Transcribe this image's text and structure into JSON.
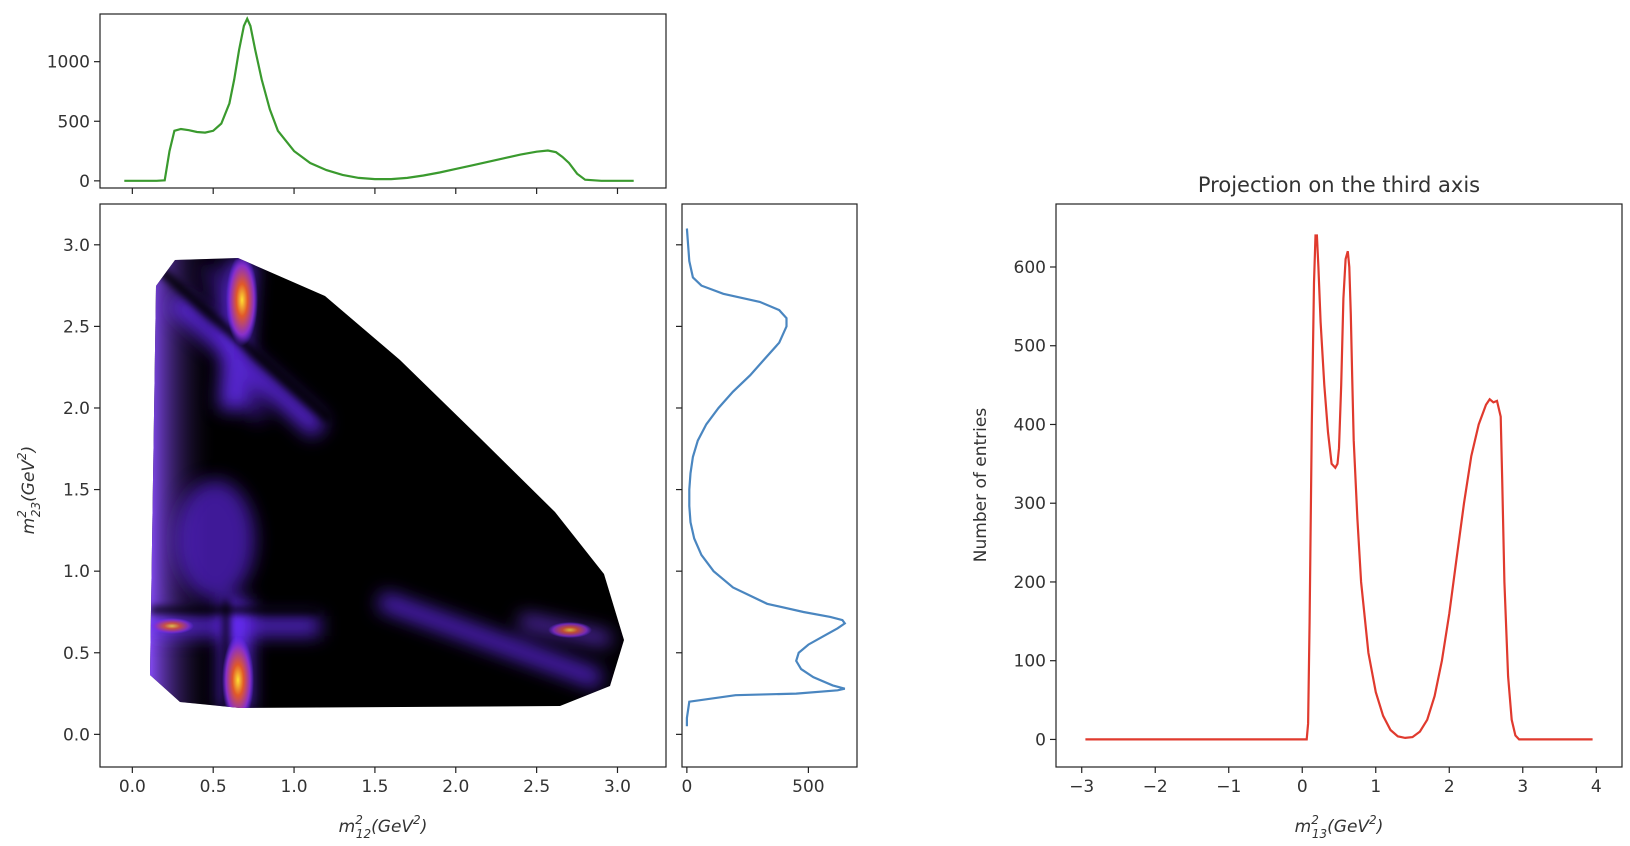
{
  "chart_data": [
    {
      "id": "top",
      "type": "line",
      "title": "",
      "xlabel": "",
      "ylabel": "",
      "xlim": [
        -0.2,
        3.3
      ],
      "ylim": [
        -60,
        1400
      ],
      "x_ticks": [
        0.0,
        0.5,
        1.0,
        1.5,
        2.0,
        2.5,
        3.0
      ],
      "y_ticks": [
        0,
        500,
        1000
      ],
      "y_tick_labels": [
        "0",
        "500",
        "1000"
      ],
      "color": "#3a9a2e",
      "series": [
        {
          "x": [
            -0.05,
            0.1,
            0.15,
            0.2,
            0.23,
            0.26,
            0.3,
            0.35,
            0.4,
            0.45,
            0.5,
            0.55,
            0.6,
            0.63,
            0.66,
            0.69,
            0.71,
            0.73,
            0.76,
            0.8,
            0.85,
            0.9,
            1.0,
            1.1,
            1.2,
            1.3,
            1.4,
            1.5,
            1.6,
            1.7,
            1.8,
            1.9,
            2.0,
            2.1,
            2.2,
            2.3,
            2.4,
            2.5,
            2.57,
            2.62,
            2.66,
            2.7,
            2.75,
            2.8,
            2.9,
            3.0,
            3.1
          ],
          "y": [
            0,
            0,
            0,
            5,
            250,
            420,
            435,
            425,
            410,
            405,
            420,
            480,
            650,
            850,
            1100,
            1300,
            1360,
            1300,
            1100,
            850,
            600,
            420,
            250,
            150,
            90,
            50,
            25,
            15,
            15,
            25,
            45,
            70,
            100,
            130,
            160,
            190,
            220,
            245,
            255,
            240,
            200,
            150,
            60,
            10,
            0,
            0,
            0
          ]
        }
      ]
    },
    {
      "id": "side",
      "type": "line",
      "title": "",
      "xlabel": "",
      "ylabel": "",
      "xlim": [
        -20,
        700
      ],
      "ylim": [
        -0.2,
        3.25
      ],
      "x_ticks": [
        0,
        500
      ],
      "x_tick_labels": [
        "0",
        "500"
      ],
      "y_ticks": [
        0.0,
        0.5,
        1.0,
        1.5,
        2.0,
        2.5,
        3.0
      ],
      "color": "#4a86c0",
      "series": [
        {
          "y": [
            0.05,
            0.1,
            0.2,
            0.24,
            0.25,
            0.27,
            0.28,
            0.3,
            0.35,
            0.4,
            0.45,
            0.5,
            0.55,
            0.6,
            0.65,
            0.68,
            0.7,
            0.72,
            0.75,
            0.8,
            0.9,
            1.0,
            1.1,
            1.2,
            1.3,
            1.4,
            1.5,
            1.6,
            1.7,
            1.8,
            1.9,
            2.0,
            2.1,
            2.2,
            2.3,
            2.4,
            2.5,
            2.55,
            2.6,
            2.65,
            2.7,
            2.75,
            2.8,
            2.9,
            3.0,
            3.1
          ],
          "x": [
            0,
            0,
            10,
            200,
            450,
            620,
            650,
            600,
            520,
            470,
            450,
            460,
            500,
            560,
            620,
            650,
            640,
            590,
            480,
            330,
            190,
            110,
            60,
            30,
            15,
            10,
            10,
            15,
            25,
            45,
            80,
            130,
            190,
            260,
            320,
            380,
            410,
            410,
            380,
            300,
            150,
            60,
            25,
            10,
            5,
            0
          ]
        }
      ]
    },
    {
      "id": "dalitz",
      "type": "heatmap",
      "title": "",
      "xlabel": "m$^2_{12}(GeV^2)$",
      "ylabel": "m$^2_{23}(GeV^2)$",
      "xlim": [
        -0.2,
        3.3
      ],
      "ylim": [
        -0.2,
        3.25
      ],
      "x_ticks": [
        0.0,
        0.5,
        1.0,
        1.5,
        2.0,
        2.5,
        3.0
      ],
      "y_ticks": [
        0.0,
        0.5,
        1.0,
        1.5,
        2.0,
        2.5,
        3.0
      ],
      "colormap": "gnuplot",
      "colors": {
        "low": "#000000",
        "mid": "#7a3cff",
        "high": "#ffe033"
      }
    },
    {
      "id": "third",
      "type": "line",
      "title": "Projection on the third axis",
      "xlabel": "m$^2_{13}(GeV^2)$",
      "ylabel": "Number of entries",
      "xlim": [
        -3.35,
        4.35
      ],
      "ylim": [
        -35,
        680
      ],
      "x_ticks": [
        -3,
        -2,
        -1,
        0,
        1,
        2,
        3,
        4
      ],
      "x_tick_labels": [
        "−3",
        "−2",
        "−1",
        "0",
        "1",
        "2",
        "3",
        "4"
      ],
      "y_ticks": [
        0,
        100,
        200,
        300,
        400,
        500,
        600
      ],
      "color": "#e03a2e",
      "series": [
        {
          "x": [
            -2.95,
            0.0,
            0.06,
            0.08,
            0.1,
            0.13,
            0.16,
            0.18,
            0.2,
            0.22,
            0.25,
            0.3,
            0.35,
            0.4,
            0.45,
            0.48,
            0.5,
            0.53,
            0.56,
            0.59,
            0.62,
            0.64,
            0.66,
            0.68,
            0.7,
            0.75,
            0.8,
            0.9,
            1.0,
            1.1,
            1.2,
            1.3,
            1.4,
            1.5,
            1.6,
            1.7,
            1.8,
            1.9,
            2.0,
            2.1,
            2.2,
            2.3,
            2.4,
            2.5,
            2.55,
            2.6,
            2.65,
            2.7,
            2.72,
            2.75,
            2.8,
            2.85,
            2.9,
            2.95,
            3.0,
            3.5,
            3.95
          ],
          "y": [
            0,
            0,
            0,
            20,
            150,
            400,
            580,
            640,
            640,
            600,
            530,
            450,
            390,
            350,
            345,
            350,
            370,
            450,
            560,
            610,
            620,
            600,
            540,
            460,
            380,
            280,
            200,
            110,
            60,
            30,
            12,
            4,
            2,
            3,
            10,
            25,
            55,
            100,
            160,
            230,
            300,
            360,
            400,
            425,
            432,
            428,
            430,
            410,
            330,
            200,
            80,
            25,
            5,
            0,
            0,
            0,
            0
          ]
        }
      ]
    }
  ]
}
